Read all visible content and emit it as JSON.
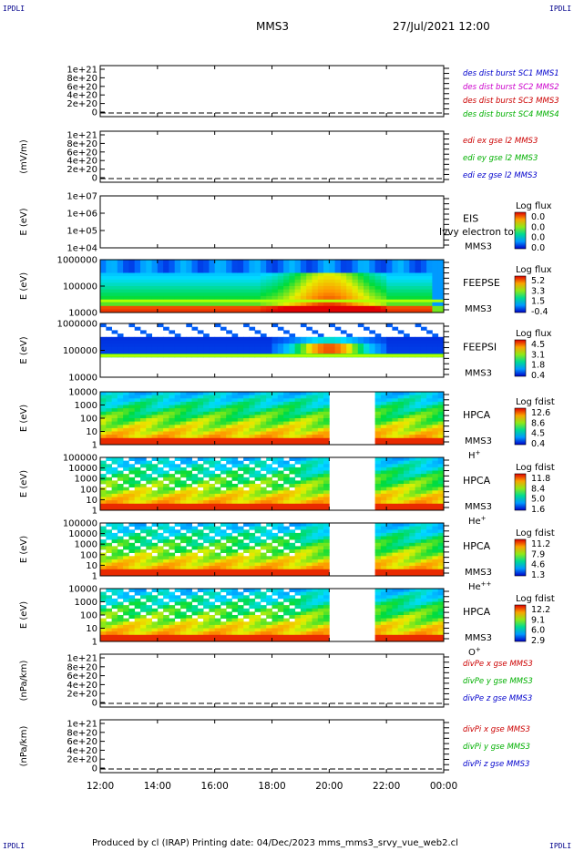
{
  "header": {
    "corner_tl": "IPDLI",
    "corner_tr": "IPDLI",
    "corner_bl": "IPDLI",
    "corner_br": "IPDLI",
    "title": "MMS3",
    "date": "27/Jul/2021 12:00"
  },
  "footer": {
    "text": "Produced by cl (IRAP)   Printing date: 04/Dec/2023   mms_mms3_srvy_vue_web2.cl"
  },
  "chart_data": [
    {
      "type": "line",
      "panel": "dist",
      "ylabel": "",
      "ytick_labels": [
        "1e+21",
        "8e+20",
        "6e+20",
        "4e+20",
        "2e+20",
        "0"
      ],
      "legend": [
        {
          "label": "des dist burst SC1 MMS1",
          "color": "#0000cc"
        },
        {
          "label": "des dist burst SC2 MMS2",
          "color": "#cc00cc"
        },
        {
          "label": "des dist burst SC3 MMS3",
          "color": "#cc0000"
        },
        {
          "label": "des dist burst SC4 MMS4",
          "color": "#00b000"
        }
      ]
    },
    {
      "type": "line",
      "panel": "edi",
      "ylabel": "(mV/m)",
      "ytick_labels": [
        "1e+21",
        "8e+20",
        "6e+20",
        "4e+20",
        "2e+20",
        "0"
      ],
      "legend": [
        {
          "label": "edi ex gse l2 MMS3",
          "color": "#cc0000"
        },
        {
          "label": "edi ey gse l2 MMS3",
          "color": "#00b000"
        },
        {
          "label": "edi ez gse l2 MMS3",
          "color": "#0000cc"
        }
      ]
    },
    {
      "type": "heatmap",
      "panel": "eis",
      "ylabel": "E (eV)",
      "ytick_labels": [
        "1e+07",
        "1e+06",
        "1e+05",
        "1e+04"
      ],
      "labels": [
        "EIS",
        "MMS3"
      ],
      "overlay_text": "Ivvy electron tof",
      "colorbar": {
        "title": "Log flux",
        "ticks": [
          "0.0",
          "0.0",
          "0.0",
          "0.0"
        ]
      }
    },
    {
      "type": "heatmap",
      "panel": "feepse",
      "ylabel": "E (eV)",
      "ytick_labels": [
        "1000000",
        "100000",
        "10000"
      ],
      "labels": [
        "FEEPSE",
        "MMS3"
      ],
      "colorbar": {
        "title": "Log flux",
        "ticks": [
          "5.2",
          "3.3",
          "1.5",
          "-0.4"
        ]
      }
    },
    {
      "type": "heatmap",
      "panel": "feepsi",
      "ylabel": "E (eV)",
      "ytick_labels": [
        "1000000",
        "100000",
        "10000"
      ],
      "labels": [
        "FEEPSI",
        "MMS3"
      ],
      "colorbar": {
        "title": "Log flux",
        "ticks": [
          "4.5",
          "3.1",
          "1.8",
          "0.4"
        ]
      }
    },
    {
      "type": "heatmap",
      "panel": "hpca_h",
      "ylabel": "E (eV)",
      "ytick_labels": [
        "10000",
        "1000",
        "100",
        "10",
        "1"
      ],
      "labels": [
        "HPCA",
        "MMS3"
      ],
      "species": "H",
      "charge": "+",
      "colorbar": {
        "title": "Log fdist",
        "ticks": [
          "12.6",
          "8.6",
          "4.5",
          "0.4"
        ]
      }
    },
    {
      "type": "heatmap",
      "panel": "hpca_he1",
      "ylabel": "E (eV)",
      "ytick_labels": [
        "100000",
        "10000",
        "1000",
        "100",
        "10",
        "1"
      ],
      "labels": [
        "HPCA",
        "MMS3"
      ],
      "species": "He",
      "charge": "+",
      "colorbar": {
        "title": "Log fdist",
        "ticks": [
          "11.8",
          "8.4",
          "5.0",
          "1.6"
        ]
      }
    },
    {
      "type": "heatmap",
      "panel": "hpca_he2",
      "ylabel": "E (eV)",
      "ytick_labels": [
        "100000",
        "10000",
        "1000",
        "100",
        "10",
        "1"
      ],
      "labels": [
        "HPCA",
        "MMS3"
      ],
      "species": "He",
      "charge": "++",
      "colorbar": {
        "title": "Log fdist",
        "ticks": [
          "11.2",
          "7.9",
          "4.6",
          "1.3"
        ]
      }
    },
    {
      "type": "heatmap",
      "panel": "hpca_o",
      "ylabel": "E (eV)",
      "ytick_labels": [
        "10000",
        "1000",
        "100",
        "10",
        "1"
      ],
      "labels": [
        "HPCA",
        "MMS3"
      ],
      "species": "O",
      "charge": "+",
      "colorbar": {
        "title": "Log fdist",
        "ticks": [
          "12.2",
          "9.1",
          "6.0",
          "2.9"
        ]
      }
    },
    {
      "type": "line",
      "panel": "divpe",
      "ylabel": "(nPa/km)",
      "ytick_labels": [
        "1e+21",
        "8e+20",
        "6e+20",
        "4e+20",
        "2e+20",
        "0"
      ],
      "legend": [
        {
          "label": "divPe x gse MMS3",
          "color": "#cc0000"
        },
        {
          "label": "divPe y gse MMS3",
          "color": "#00b000"
        },
        {
          "label": "divPe z gse MMS3",
          "color": "#0000cc"
        }
      ]
    },
    {
      "type": "line",
      "panel": "divpi",
      "ylabel": "(nPa/km)",
      "ytick_labels": [
        "1e+21",
        "8e+20",
        "6e+20",
        "4e+20",
        "2e+20",
        "0"
      ],
      "legend": [
        {
          "label": "divPi x gse MMS3",
          "color": "#cc0000"
        },
        {
          "label": "divPi y gse MMS3",
          "color": "#00b000"
        },
        {
          "label": "divPi z gse MMS3",
          "color": "#0000cc"
        }
      ]
    }
  ],
  "time_axis": {
    "tick_labels": [
      "12:00",
      "14:00",
      "16:00",
      "18:00",
      "20:00",
      "22:00",
      "00:00"
    ],
    "range_hours": [
      12,
      24
    ],
    "hpca_gap_hours": [
      20.0,
      21.6
    ]
  }
}
